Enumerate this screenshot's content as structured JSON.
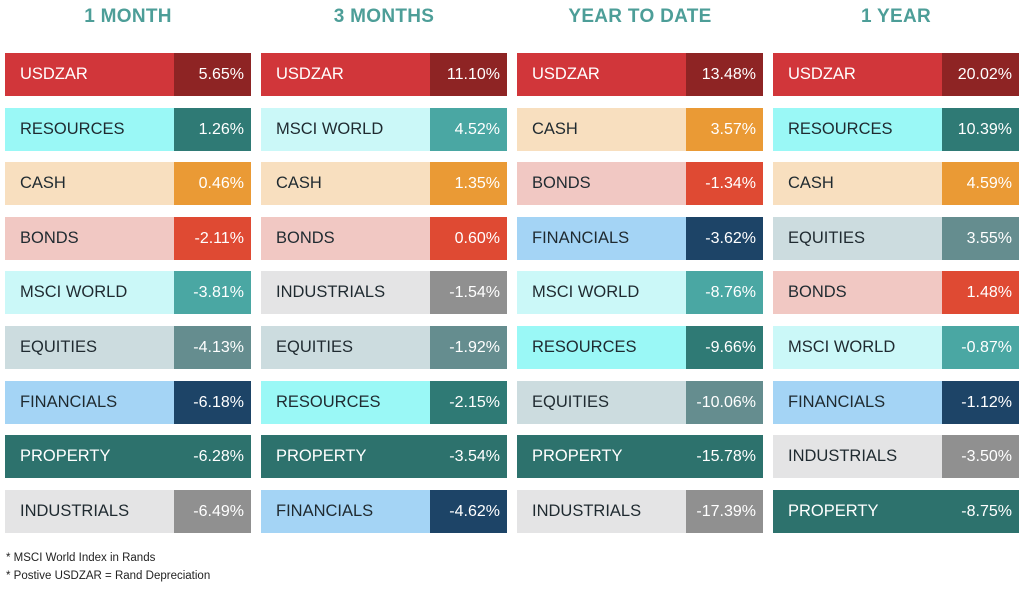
{
  "colors": {
    "USDZAR": {
      "label_bg": "#d1363a",
      "value_bg": "#8e2424",
      "dark": true
    },
    "RESOURCES": {
      "label_bg": "#9af8f6",
      "value_bg": "#2f7a75",
      "dark": false
    },
    "CASH": {
      "label_bg": "#f8dfbf",
      "value_bg": "#ea9a35",
      "dark": false
    },
    "BONDS": {
      "label_bg": "#f1c8c3",
      "value_bg": "#df4a33",
      "dark": false
    },
    "MSCI WORLD": {
      "label_bg": "#cbf8f8",
      "value_bg": "#4aa7a3",
      "dark": false
    },
    "EQUITIES": {
      "label_bg": "#ccdcdf",
      "value_bg": "#658d8f",
      "dark": false
    },
    "FINANCIALS": {
      "label_bg": "#a4d4f5",
      "value_bg": "#1d4467",
      "dark": false
    },
    "PROPERTY": {
      "label_bg": "#2d726d",
      "value_bg": "#2d726d",
      "dark": true
    },
    "INDUSTRIALS": {
      "label_bg": "#e4e4e5",
      "value_bg": "#909090",
      "dark": false
    }
  },
  "columns": [
    {
      "title": "1 MONTH",
      "rows": [
        {
          "label": "USDZAR",
          "value": "5.65%"
        },
        {
          "label": "RESOURCES",
          "value": "1.26%"
        },
        {
          "label": "CASH",
          "value": "0.46%"
        },
        {
          "label": "BONDS",
          "value": "-2.11%"
        },
        {
          "label": "MSCI WORLD",
          "value": "-3.81%"
        },
        {
          "label": "EQUITIES",
          "value": "-4.13%"
        },
        {
          "label": "FINANCIALS",
          "value": "-6.18%"
        },
        {
          "label": "PROPERTY",
          "value": "-6.28%"
        },
        {
          "label": "INDUSTRIALS",
          "value": "-6.49%"
        }
      ]
    },
    {
      "title": "3 MONTHS",
      "rows": [
        {
          "label": "USDZAR",
          "value": "11.10%"
        },
        {
          "label": "MSCI WORLD",
          "value": "4.52%"
        },
        {
          "label": "CASH",
          "value": "1.35%"
        },
        {
          "label": "BONDS",
          "value": "0.60%"
        },
        {
          "label": "INDUSTRIALS",
          "value": "-1.54%"
        },
        {
          "label": "EQUITIES",
          "value": "-1.92%"
        },
        {
          "label": "RESOURCES",
          "value": "-2.15%"
        },
        {
          "label": "PROPERTY",
          "value": "-3.54%"
        },
        {
          "label": "FINANCIALS",
          "value": "-4.62%"
        }
      ]
    },
    {
      "title": "YEAR TO DATE",
      "rows": [
        {
          "label": "USDZAR",
          "value": "13.48%"
        },
        {
          "label": "CASH",
          "value": "3.57%"
        },
        {
          "label": "BONDS",
          "value": "-1.34%"
        },
        {
          "label": "FINANCIALS",
          "value": "-3.62%"
        },
        {
          "label": "MSCI WORLD",
          "value": "-8.76%"
        },
        {
          "label": "RESOURCES",
          "value": "-9.66%"
        },
        {
          "label": "EQUITIES",
          "value": "-10.06%"
        },
        {
          "label": "PROPERTY",
          "value": "-15.78%"
        },
        {
          "label": "INDUSTRIALS",
          "value": "-17.39%"
        }
      ]
    },
    {
      "title": "1 YEAR",
      "rows": [
        {
          "label": "USDZAR",
          "value": "20.02%"
        },
        {
          "label": "RESOURCES",
          "value": "10.39%"
        },
        {
          "label": "CASH",
          "value": "4.59%"
        },
        {
          "label": "EQUITIES",
          "value": "3.55%"
        },
        {
          "label": "BONDS",
          "value": "1.48%"
        },
        {
          "label": "MSCI WORLD",
          "value": "-0.87%"
        },
        {
          "label": "FINANCIALS",
          "value": "-1.12%"
        },
        {
          "label": "INDUSTRIALS",
          "value": "-3.50%"
        },
        {
          "label": "PROPERTY",
          "value": "-8.75%"
        }
      ]
    }
  ],
  "notes": [
    "* MSCI World Index in  Rands",
    "* Postive USDZAR = Rand Depreciation"
  ]
}
